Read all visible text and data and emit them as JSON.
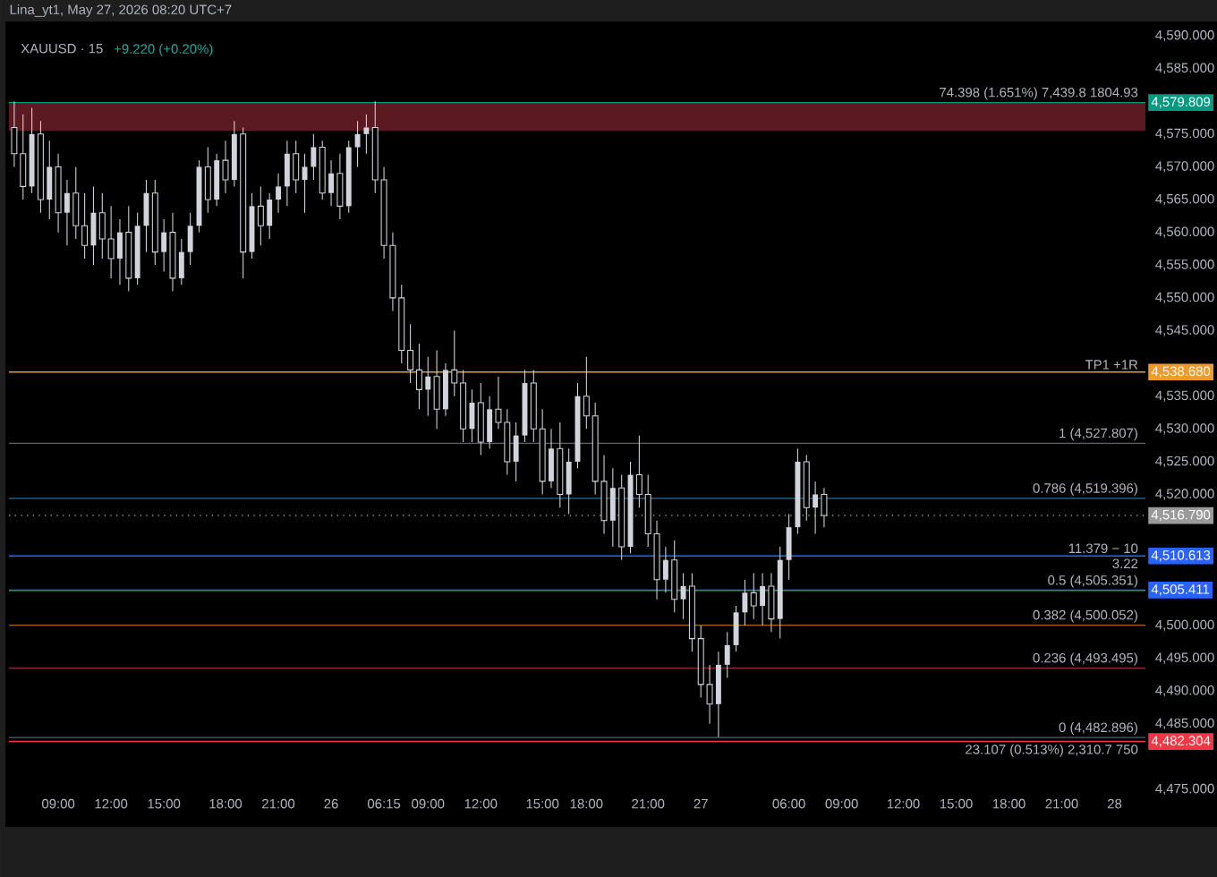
{
  "chart_data": {
    "type": "candlestick",
    "title": "XAUUSD · 15",
    "subtitle": "+9.220 (+0.20%)",
    "color": "#d1d4dc",
    "categories": [
      null,
      null,
      null,
      null,
      null,
      "09:00",
      null,
      null,
      null,
      null,
      null,
      "12:00",
      null,
      null,
      null,
      null,
      null,
      "15:00",
      null,
      null,
      null,
      null,
      null,
      null,
      "18:00",
      null,
      null,
      null,
      null,
      null,
      "21:00",
      null,
      null,
      null,
      null,
      null,
      "26",
      null,
      null,
      null,
      null,
      null,
      "06:15",
      null,
      null,
      null,
      null,
      "09:00",
      null,
      null,
      null,
      null,
      null,
      "12:00",
      null,
      null,
      null,
      null,
      null,
      null,
      "15:00",
      null,
      null,
      null,
      null,
      "18:00",
      null,
      null,
      null,
      null,
      null,
      null,
      "21:00",
      null,
      null,
      null,
      null,
      null,
      "27",
      null,
      null,
      null,
      null,
      null,
      null,
      null,
      null,
      null,
      "06:00",
      null,
      null,
      null,
      null,
      null,
      "09:00",
      null,
      null,
      null,
      null,
      null,
      null,
      "12:00",
      null,
      null,
      null,
      null,
      null,
      "15:00",
      null,
      null,
      null,
      null,
      null,
      "18:00",
      null,
      null,
      null,
      null,
      null,
      "21:00",
      null,
      null,
      null,
      null,
      null,
      "28"
    ],
    "ohlc": [
      [
        4576,
        4580,
        4570,
        4572
      ],
      [
        4572,
        4578,
        4565,
        4567
      ],
      [
        4567,
        4579,
        4566,
        4575
      ],
      [
        4575,
        4577,
        4563,
        4565
      ],
      [
        4565,
        4574,
        4562,
        4570
      ],
      [
        4570,
        4572,
        4560,
        4563
      ],
      [
        4563,
        4568,
        4558,
        4566
      ],
      [
        4566,
        4570,
        4559,
        4561
      ],
      [
        4561,
        4566,
        4556,
        4558
      ],
      [
        4558,
        4567,
        4555,
        4563
      ],
      [
        4563,
        4566,
        4556,
        4559
      ],
      [
        4559,
        4564,
        4553,
        4556
      ],
      [
        4556,
        4562,
        4552,
        4560
      ],
      [
        4560,
        4564,
        4551,
        4553
      ],
      [
        4553,
        4563,
        4552,
        4561
      ],
      [
        4561,
        4568,
        4557,
        4566
      ],
      [
        4566,
        4568,
        4555,
        4557
      ],
      [
        4557,
        4562,
        4554,
        4560
      ],
      [
        4560,
        4563,
        4551,
        4553
      ],
      [
        4553,
        4559,
        4552,
        4557
      ],
      [
        4557,
        4563,
        4555,
        4561
      ],
      [
        4561,
        4571,
        4560,
        4570
      ],
      [
        4570,
        4573,
        4563,
        4565
      ],
      [
        4565,
        4572,
        4564,
        4571
      ],
      [
        4571,
        4574,
        4566,
        4568
      ],
      [
        4568,
        4577,
        4567,
        4575
      ],
      [
        4575,
        4576,
        4553,
        4557
      ],
      [
        4557,
        4566,
        4556,
        4564
      ],
      [
        4564,
        4567,
        4558,
        4561
      ],
      [
        4561,
        4566,
        4559,
        4565
      ],
      [
        4565,
        4569,
        4563,
        4567
      ],
      [
        4567,
        4574,
        4564,
        4572
      ],
      [
        4572,
        4574,
        4566,
        4568
      ],
      [
        4568,
        4572,
        4563,
        4570
      ],
      [
        4570,
        4575,
        4568,
        4573
      ],
      [
        4573,
        4574,
        4565,
        4566
      ],
      [
        4566,
        4571,
        4564,
        4569
      ],
      [
        4569,
        4572,
        4562,
        4564
      ],
      [
        4564,
        4574,
        4563,
        4573
      ],
      [
        4573,
        4577,
        4570,
        4575
      ],
      [
        4575,
        4578,
        4572,
        4576
      ],
      [
        4576,
        4580,
        4566,
        4568
      ],
      [
        4568,
        4570,
        4556,
        4558
      ],
      [
        4558,
        4560,
        4548,
        4550
      ],
      [
        4550,
        4552,
        4540,
        4542
      ],
      [
        4542,
        4546,
        4537,
        4539
      ],
      [
        4539,
        4543,
        4533,
        4536
      ],
      [
        4536,
        4541,
        4532,
        4538
      ],
      [
        4538,
        4542,
        4530,
        4533
      ],
      [
        4533,
        4540,
        4532,
        4539
      ],
      [
        4539,
        4545,
        4535,
        4537
      ],
      [
        4537,
        4539,
        4528,
        4530
      ],
      [
        4530,
        4536,
        4528,
        4534
      ],
      [
        4534,
        4537,
        4526,
        4528
      ],
      [
        4528,
        4535,
        4527,
        4533
      ],
      [
        4533,
        4538,
        4530,
        4531
      ],
      [
        4531,
        4533,
        4523,
        4525
      ],
      [
        4525,
        4531,
        4522,
        4529
      ],
      [
        4529,
        4539,
        4528,
        4537
      ],
      [
        4537,
        4539,
        4528,
        4530
      ],
      [
        4530,
        4533,
        4520,
        4522
      ],
      [
        4522,
        4530,
        4521,
        4527
      ],
      [
        4527,
        4531,
        4518,
        4520
      ],
      [
        4520,
        4527,
        4517,
        4525
      ],
      [
        4525,
        4537,
        4524,
        4535
      ],
      [
        4535,
        4541,
        4530,
        4532
      ],
      [
        4532,
        4534,
        4520,
        4522
      ],
      [
        4522,
        4526,
        4514,
        4516
      ],
      [
        4516,
        4524,
        4512,
        4521
      ],
      [
        4521,
        4523,
        4510,
        4512
      ],
      [
        4512,
        4525,
        4511,
        4523
      ],
      [
        4523,
        4529,
        4518,
        4520
      ],
      [
        4520,
        4523,
        4512,
        4514
      ],
      [
        4514,
        4516,
        4504,
        4507
      ],
      [
        4507,
        4512,
        4505,
        4510
      ],
      [
        4510,
        4513,
        4502,
        4504
      ],
      [
        4504,
        4508,
        4501,
        4506
      ],
      [
        4506,
        4508,
        4496,
        4498
      ],
      [
        4498,
        4500,
        4489,
        4491
      ],
      [
        4491,
        4494,
        4485,
        4488
      ],
      [
        4488,
        4496,
        4483,
        4494
      ],
      [
        4494,
        4499,
        4492,
        4497
      ],
      [
        4497,
        4503,
        4496,
        4502
      ],
      [
        4502,
        4507,
        4500,
        4505
      ],
      [
        4505,
        4508,
        4501,
        4503
      ],
      [
        4503,
        4508,
        4500,
        4506
      ],
      [
        4506,
        4508,
        4499,
        4501
      ],
      [
        4501,
        4512,
        4498,
        4510
      ],
      [
        4510,
        4517,
        4507,
        4515
      ],
      [
        4515,
        4527,
        4514,
        4525
      ],
      [
        4525,
        4526,
        4516,
        4518
      ],
      [
        4518,
        4522,
        4514,
        4520
      ],
      [
        4520,
        4521,
        4515,
        4516.79
      ],
      null,
      null,
      null,
      null,
      null,
      null,
      null,
      null,
      null,
      null,
      null,
      null,
      null,
      null,
      null,
      null,
      null,
      null,
      null,
      null,
      null,
      null,
      null,
      null,
      null,
      null,
      null,
      null,
      null,
      null,
      null,
      null,
      null
    ],
    "ylim": [
      4475,
      4590
    ],
    "yticks": [
      {
        "value": 4475,
        "label": "4,475.000"
      },
      {
        "value": 4485,
        "label": "4,485.000"
      },
      {
        "value": 4490,
        "label": "4,490.000"
      },
      {
        "value": 4495,
        "label": "4,495.000"
      },
      {
        "value": 4500,
        "label": "4,500.000"
      },
      {
        "value": 4520,
        "label": "4,520.000"
      },
      {
        "value": 4525,
        "label": "4,525.000"
      },
      {
        "value": 4530,
        "label": "4,530.000"
      },
      {
        "value": 4535,
        "label": "4,535.000"
      },
      {
        "value": 4545,
        "label": "4,545.000"
      },
      {
        "value": 4550,
        "label": "4,550.000"
      },
      {
        "value": 4555,
        "label": "4,555.000"
      },
      {
        "value": 4560,
        "label": "4,560.000"
      },
      {
        "value": 4565,
        "label": "4,565.000"
      },
      {
        "value": 4570,
        "label": "4,570.000"
      },
      {
        "value": 4575,
        "label": "4,575.000"
      },
      {
        "value": 4585,
        "label": "4,585.000"
      },
      {
        "value": 4590,
        "label": "4,590.000"
      }
    ],
    "bands": [
      {
        "axis": "y",
        "from": 4575.5,
        "to": 4579.8,
        "color": "#5b1a22"
      }
    ],
    "ref_lines": [
      {
        "axis": "y",
        "value": 4579.809,
        "label": "4,579.809",
        "color": "#089981"
      },
      {
        "axis": "y",
        "value": 4538.68,
        "label": "4,538.680",
        "color": "#f09a2a"
      },
      {
        "axis": "y",
        "value": 4516.79,
        "label": "4,516.790",
        "color": "#9a9a9a",
        "line_style": "dotted"
      },
      {
        "axis": "y",
        "value": 4510.613,
        "label": "4,510.613",
        "color": "#2962ff"
      },
      {
        "axis": "y",
        "value": 4505.411,
        "label": "4,505.411",
        "color": "#2962ff"
      },
      {
        "axis": "y",
        "value": 4482.304,
        "label": "4,482.304",
        "color": "#f23645"
      },
      {
        "axis": "y",
        "value": 4527.807,
        "color": "#5d606b"
      },
      {
        "axis": "y",
        "value": 4519.396,
        "color": "#2a6f8f"
      },
      {
        "axis": "y",
        "value": 4505.351,
        "color": "#3f8f4a"
      },
      {
        "axis": "y",
        "value": 4500.052,
        "color": "#a8661a"
      },
      {
        "axis": "y",
        "value": 4493.495,
        "color": "#8f2d34"
      },
      {
        "axis": "y",
        "value": 4482.896,
        "color": "#5d606b"
      }
    ],
    "annotations": [
      "Lina_yt1, May 27, 2026 08:20 UTC+7",
      {
        "text": "74.398 (1.651%) 7,439.8 1804.93",
        "y": 4579.809
      },
      {
        "text": "TP1 +1R",
        "y": 4538.68
      },
      {
        "text": "1 (4,527.807)",
        "y": 4527.807
      },
      {
        "text": "0.786 (4,519.396)",
        "y": 4519.396
      },
      {
        "text": "11.379 − 10",
        "y": 4510.613
      },
      {
        "text": "3.22",
        "y": 4510.613
      },
      {
        "text": "0.5 (4,505.351)",
        "y": 4505.351
      },
      {
        "text": "0.382 (4,500.052)",
        "y": 4500.052
      },
      {
        "text": "0.236 (4,493.495)",
        "y": 4493.495
      },
      {
        "text": "0 (4,482.896)",
        "y": 4482.896
      },
      {
        "text": "23.107 (0.513%) 2,310.7 750",
        "y": 4482.304
      }
    ]
  }
}
